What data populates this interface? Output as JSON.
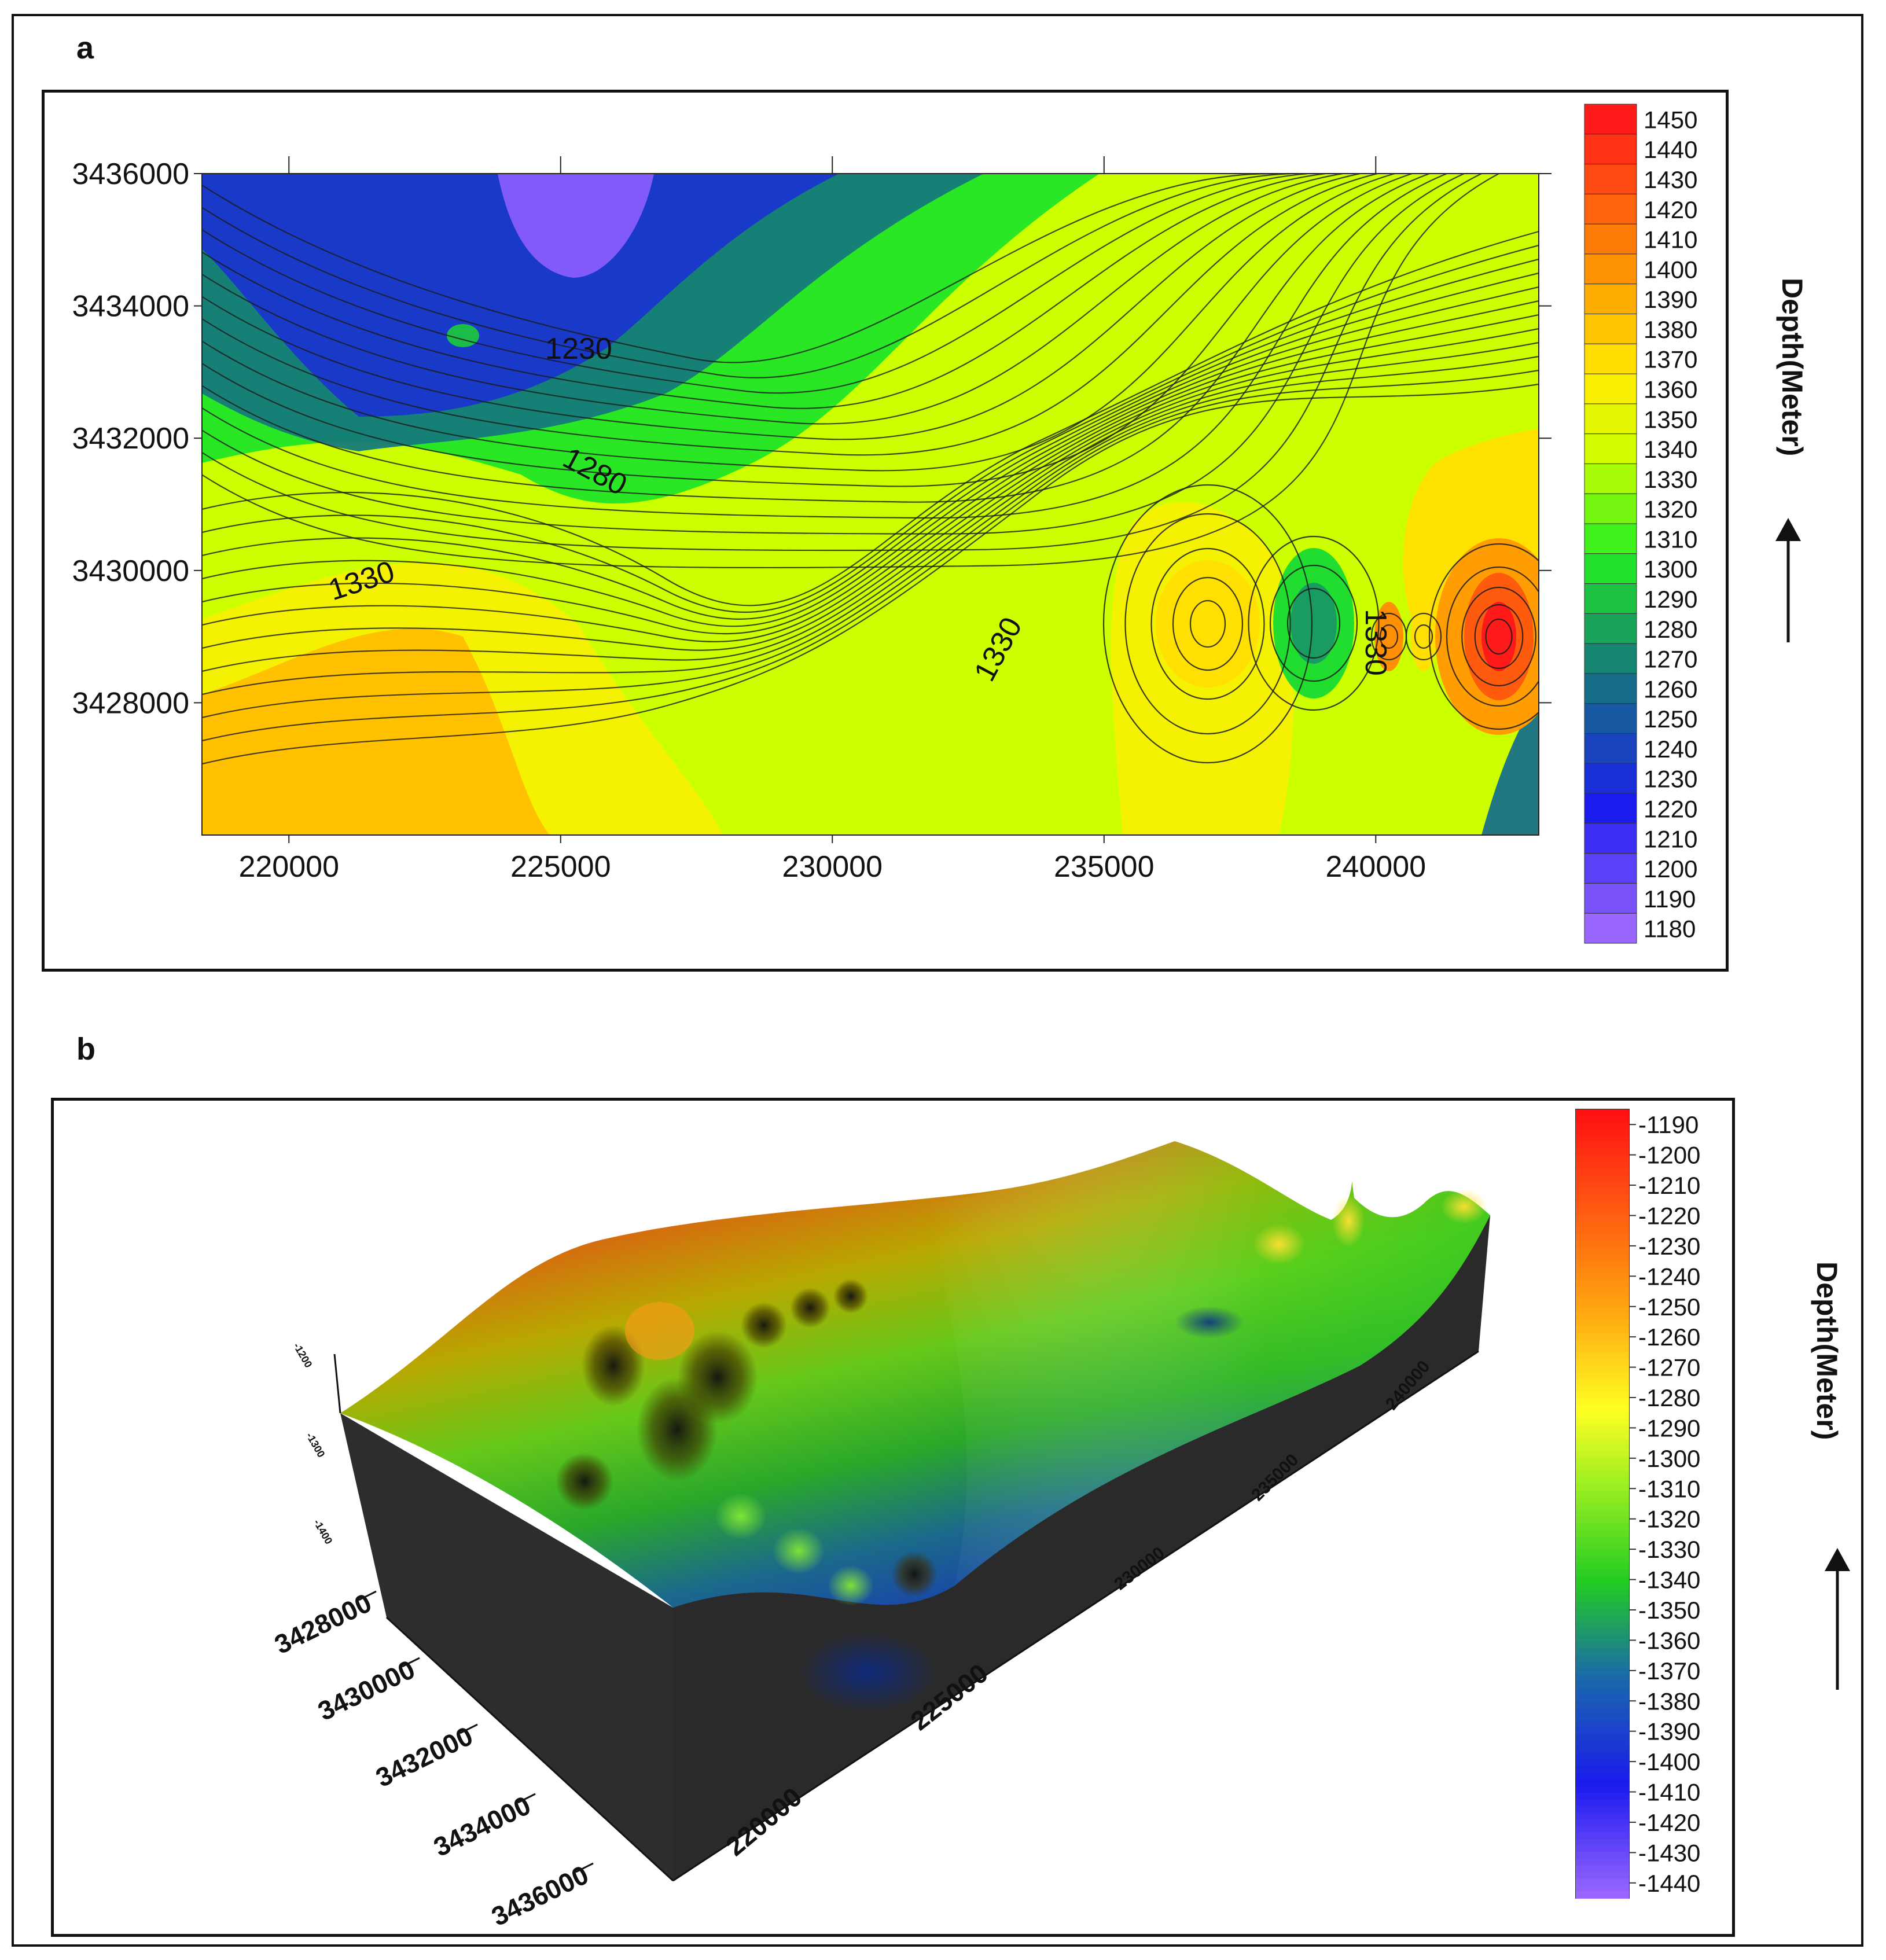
{
  "panels": {
    "a": {
      "letter": "a"
    },
    "b": {
      "letter": "b"
    }
  },
  "chart_data": [
    {
      "type": "heatmap",
      "subtype": "contour-map",
      "panel": "a",
      "x_ticks": [
        220000,
        225000,
        230000,
        235000,
        240000
      ],
      "y_ticks": [
        3428000,
        3430000,
        3432000,
        3434000,
        3436000
      ],
      "xlim": [
        218400,
        243000
      ],
      "ylim": [
        3426000,
        3436000
      ],
      "contour_labels": [
        "1230",
        "1280",
        "1330",
        "1330",
        "1330"
      ],
      "colorbar": {
        "label": "Depth(Meter)",
        "arrow": "up",
        "min": 1180,
        "max": 1450,
        "ticks": [
          "1450",
          "1440",
          "1430",
          "1420",
          "1410",
          "1400",
          "1390",
          "1380",
          "1370",
          "1360",
          "1350",
          "1340",
          "1330",
          "1320",
          "1310",
          "1300",
          "1290",
          "1280",
          "1270",
          "1260",
          "1250",
          "1240",
          "1230",
          "1220",
          "1210",
          "1200",
          "1190",
          "1180"
        ]
      },
      "colors": {
        "low": "#9966ff",
        "deep_blue": "#1a1aee",
        "teal": "#157a7a",
        "green": "#22ee22",
        "yellow_green": "#ccff00",
        "yellow": "#ffee00",
        "orange": "#ffaa00",
        "high": "#ff1a1a"
      },
      "features": [
        {
          "kind": "min",
          "x": 225000,
          "y": 3435600,
          "value": 1190
        },
        {
          "kind": "max",
          "x": 237000,
          "y": 3429200,
          "value": 1370
        },
        {
          "kind": "max",
          "x": 242300,
          "y": 3429000,
          "value": 1440
        },
        {
          "kind": "max",
          "x": 222600,
          "y": 3427000,
          "value": 1370
        }
      ]
    },
    {
      "type": "heatmap",
      "subtype": "3d-surface",
      "panel": "b",
      "x_ticks": [
        "220000",
        "225000",
        "230000",
        "235000",
        "240000"
      ],
      "y_ticks": [
        "3428000",
        "3430000",
        "3432000",
        "3434000",
        "3436000"
      ],
      "z_ticks": [
        "-1200",
        "-1300",
        "-1400"
      ],
      "colorbar": {
        "label": "Depth(Meter)",
        "arrow": "up",
        "min": -1440,
        "max": -1190,
        "ticks": [
          "-1190",
          "-1200",
          "-1210",
          "-1220",
          "-1230",
          "-1240",
          "-1250",
          "-1260",
          "-1270",
          "-1280",
          "-1290",
          "-1300",
          "-1310",
          "-1320",
          "-1330",
          "-1340",
          "-1350",
          "-1360",
          "-1370",
          "-1380",
          "-1390",
          "-1400",
          "-1410",
          "-1420",
          "-1430",
          "-1440"
        ]
      }
    }
  ]
}
